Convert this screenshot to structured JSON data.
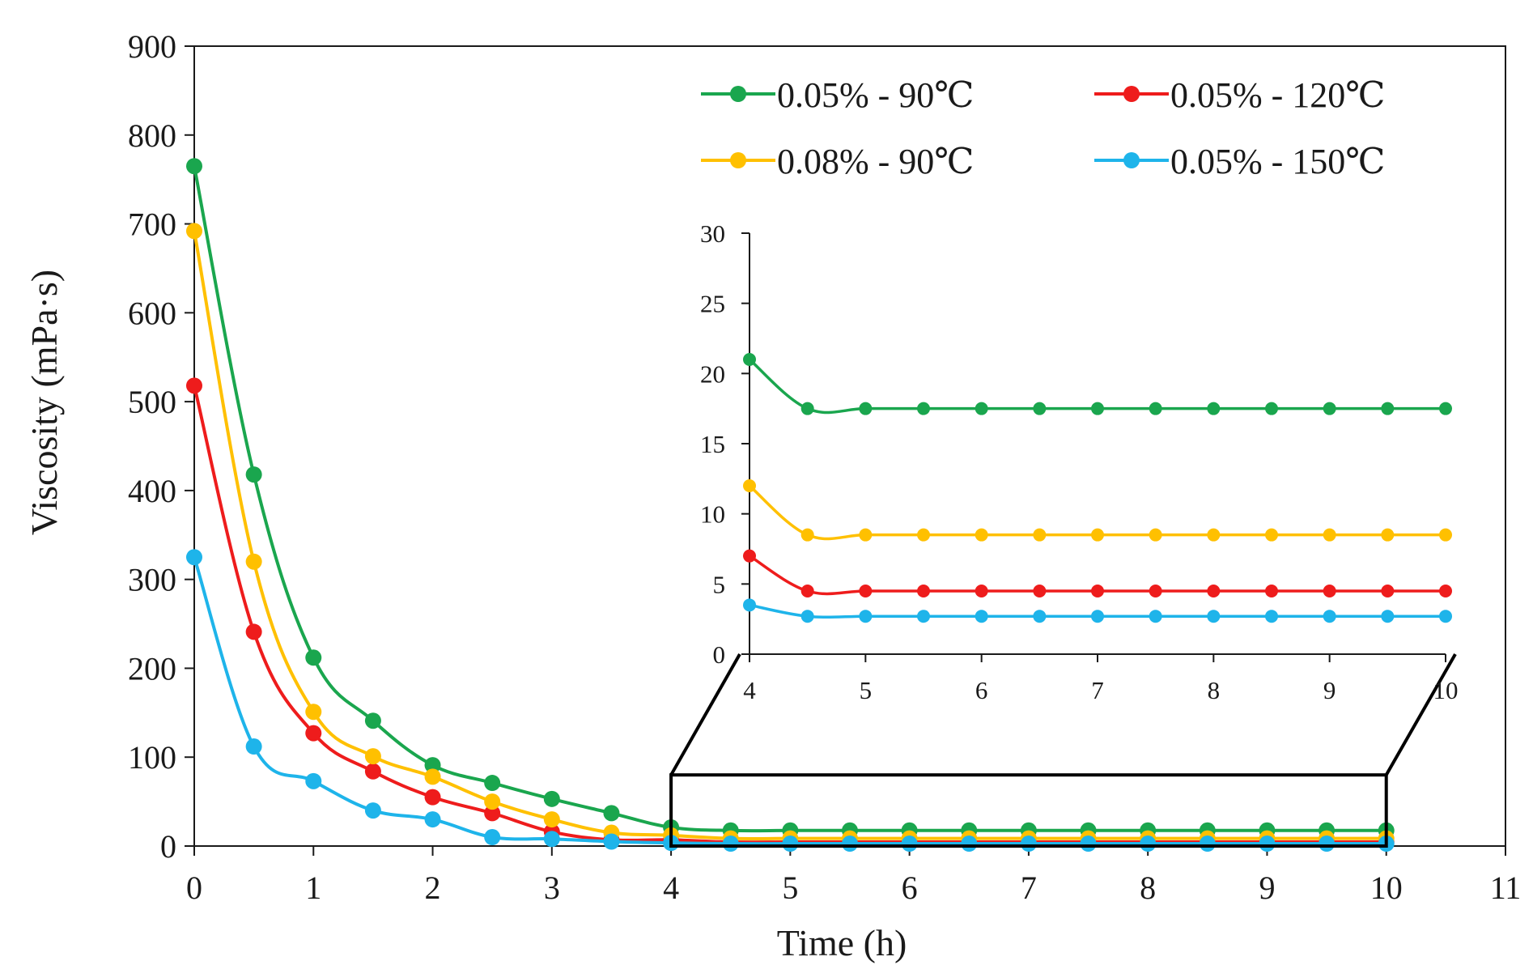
{
  "chart_data": [
    {
      "type": "line",
      "xlabel": "Time (h)",
      "ylabel": "Viscosity (mPa·s)",
      "xlim": [
        0,
        11
      ],
      "ylim": [
        0,
        900
      ],
      "xticks": [
        "0",
        "1",
        "2",
        "3",
        "4",
        "5",
        "6",
        "7",
        "8",
        "9",
        "10",
        "11"
      ],
      "yticks": [
        "0",
        "100",
        "200",
        "300",
        "400",
        "500",
        "600",
        "700",
        "800",
        "900"
      ],
      "grid": false,
      "legend_position": "top-right",
      "x": [
        0,
        0.5,
        1,
        1.5,
        2,
        2.5,
        3,
        3.5,
        4,
        4.5,
        5,
        5.5,
        6,
        6.5,
        7,
        7.5,
        8,
        8.5,
        9,
        9.5,
        10
      ],
      "series": [
        {
          "name": "0.05% - 90℃",
          "color": "#1aa64e",
          "values": [
            765,
            418,
            212,
            141,
            91,
            71,
            53,
            37,
            21,
            17.5,
            17.5,
            17.5,
            17.5,
            17.5,
            17.5,
            17.5,
            17.5,
            17.5,
            17.5,
            17.5,
            17.5
          ]
        },
        {
          "name": "0.05% - 120℃",
          "color": "#ee1c1c",
          "values": [
            518,
            241,
            127,
            84,
            55,
            37,
            16,
            7,
            7,
            4.5,
            4.5,
            4.5,
            4.5,
            4.5,
            4.5,
            4.5,
            4.5,
            4.5,
            4.5,
            4.5,
            4.5
          ]
        },
        {
          "name": "0.08% - 90℃",
          "color": "#ffc000",
          "values": [
            692,
            320,
            151,
            101,
            78,
            50,
            30,
            15,
            12,
            8.5,
            8.5,
            8.5,
            8.5,
            8.5,
            8.5,
            8.5,
            8.5,
            8.5,
            8.5,
            8.5,
            8.5
          ]
        },
        {
          "name": "0.05% - 150℃",
          "color": "#1eb4ea",
          "values": [
            325,
            112,
            73,
            40,
            30,
            10,
            8,
            5,
            3.5,
            2.7,
            2.7,
            2.7,
            2.7,
            2.7,
            2.7,
            2.7,
            2.7,
            2.7,
            2.7,
            2.7,
            2.7
          ]
        }
      ],
      "zoom_region": {
        "x": [
          4,
          10
        ],
        "y": [
          0,
          80
        ]
      }
    },
    {
      "type": "line",
      "role": "inset",
      "xlim": [
        4,
        10
      ],
      "ylim": [
        0,
        30
      ],
      "xticks": [
        "4",
        "5",
        "6",
        "7",
        "8",
        "9",
        "10"
      ],
      "yticks": [
        "0",
        "5",
        "10",
        "15",
        "20",
        "25",
        "30"
      ],
      "x": [
        4,
        4.5,
        5,
        5.5,
        6,
        6.5,
        7,
        7.5,
        8,
        8.5,
        9,
        9.5,
        10
      ],
      "series": [
        {
          "name": "0.05% - 90℃",
          "color": "#1aa64e",
          "values": [
            21,
            17.5,
            17.5,
            17.5,
            17.5,
            17.5,
            17.5,
            17.5,
            17.5,
            17.5,
            17.5,
            17.5,
            17.5
          ]
        },
        {
          "name": "0.08% - 90℃",
          "color": "#ffc000",
          "values": [
            12,
            8.5,
            8.5,
            8.5,
            8.5,
            8.5,
            8.5,
            8.5,
            8.5,
            8.5,
            8.5,
            8.5,
            8.5
          ]
        },
        {
          "name": "0.05% - 120℃",
          "color": "#ee1c1c",
          "values": [
            7,
            4.5,
            4.5,
            4.5,
            4.5,
            4.5,
            4.5,
            4.5,
            4.5,
            4.5,
            4.5,
            4.5,
            4.5
          ]
        },
        {
          "name": "0.05% - 150℃",
          "color": "#1eb4ea",
          "values": [
            3.5,
            2.7,
            2.7,
            2.7,
            2.7,
            2.7,
            2.7,
            2.7,
            2.7,
            2.7,
            2.7,
            2.7,
            2.7
          ]
        }
      ]
    }
  ],
  "legend": {
    "entries": [
      {
        "label": "0.05% - 90℃",
        "color": "#1aa64e"
      },
      {
        "label": "0.05% - 120℃",
        "color": "#ee1c1c"
      },
      {
        "label": "0.08% - 90℃",
        "color": "#ffc000"
      },
      {
        "label": "0.05% - 150℃",
        "color": "#1eb4ea"
      }
    ]
  }
}
